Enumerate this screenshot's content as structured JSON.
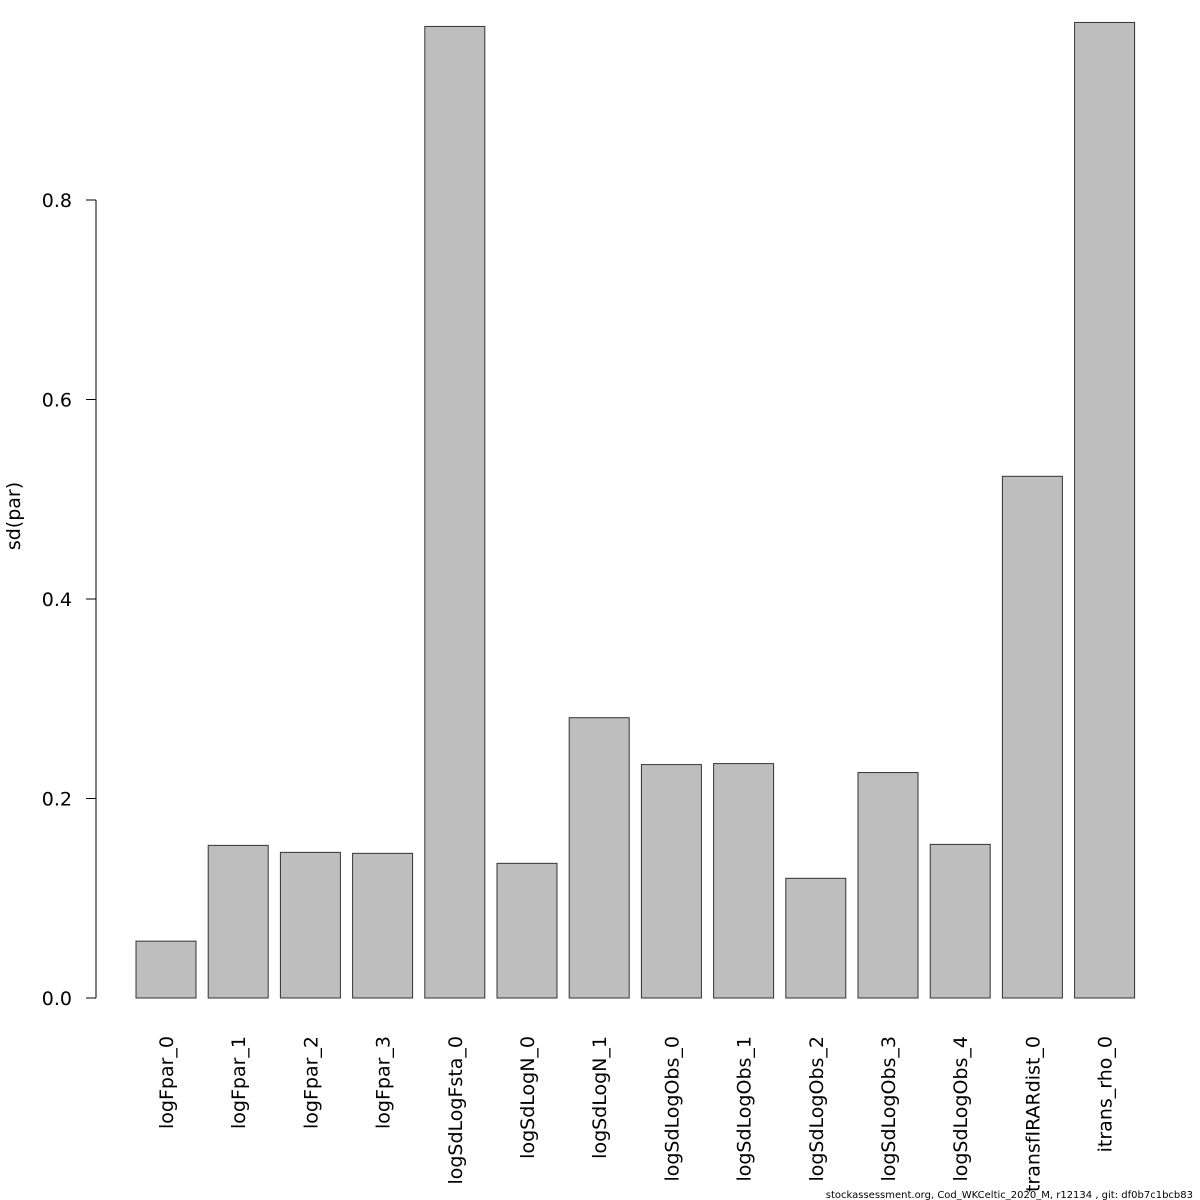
{
  "chart_data": {
    "type": "bar",
    "title": "",
    "xlabel": "",
    "ylabel": "sd(par)",
    "ylim": [
      0,
      0.98
    ],
    "y_ticks": [
      0.0,
      0.2,
      0.4,
      0.6,
      0.8
    ],
    "y_tick_labels": [
      "0.0",
      "0.2",
      "0.4",
      "0.6",
      "0.8"
    ],
    "grid": false,
    "legend": "none",
    "bar_color": "#bebebe",
    "bar_border_color": "#333333",
    "categories": [
      "logFpar_0",
      "logFpar_1",
      "logFpar_2",
      "logFpar_3",
      "logSdLogFsta_0",
      "logSdLogN_0",
      "logSdLogN_1",
      "logSdLogObs_0",
      "logSdLogObs_1",
      "logSdLogObs_2",
      "logSdLogObs_3",
      "logSdLogObs_4",
      "transfIRARdist_0",
      "itrans_rho_0"
    ],
    "values": [
      0.057,
      0.153,
      0.146,
      0.145,
      0.974,
      0.135,
      0.281,
      0.234,
      0.235,
      0.12,
      0.226,
      0.154,
      0.523,
      0.978
    ]
  },
  "footer": {
    "note": "stockassessment.org, Cod_WKCeltic_2020_M, r12134 , git: df0b7c1bcb83"
  }
}
